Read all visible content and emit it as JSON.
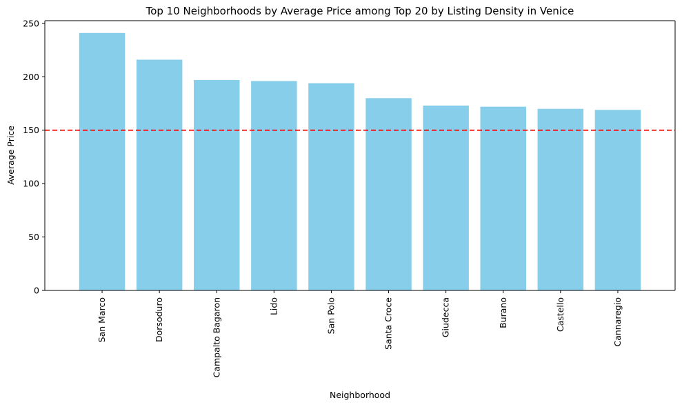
{
  "chart_data": {
    "type": "bar",
    "title": "Top 10 Neighborhoods by Average Price among Top 20 by Listing Density in Venice",
    "xlabel": "Neighborhood",
    "ylabel": "Average Price",
    "categories": [
      "San Marco",
      "Dorsoduro",
      "Campalto Bagaron",
      "Lido",
      "San Polo",
      "Santa Croce",
      "Giudecca",
      "Burano",
      "Castello",
      "Cannaregio"
    ],
    "values": [
      241,
      216,
      197,
      196,
      194,
      180,
      173,
      172,
      170,
      169
    ],
    "ylim": [
      0,
      252.5
    ],
    "yticks": [
      0,
      50,
      100,
      150,
      200,
      250
    ],
    "reference_line": {
      "value": 150,
      "style": "dashed",
      "color": "#ff0000"
    },
    "bar_color": "#87ceeb",
    "grid": false,
    "legend": "none"
  }
}
